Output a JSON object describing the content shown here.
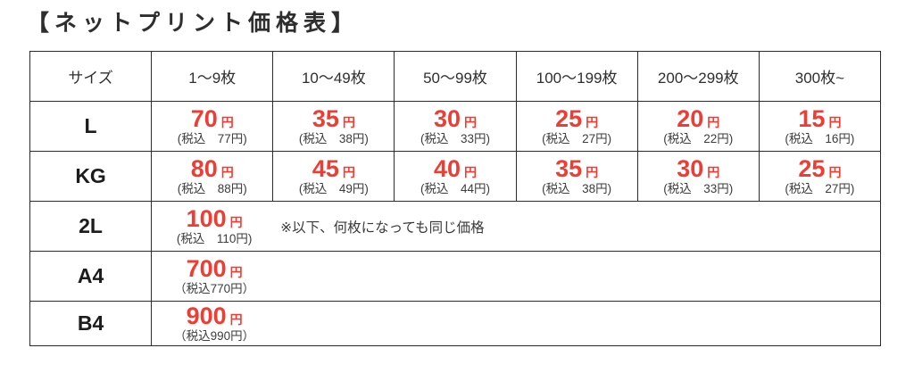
{
  "title": "【ネットプリント価格表】",
  "colors": {
    "accent_red": "#f03c32",
    "border": "#2b2b2b",
    "text_dark": "#2f2f2f"
  },
  "table": {
    "headers": [
      "サイズ",
      "1〜9枚",
      "10〜49枚",
      "50〜99枚",
      "100〜199枚",
      "200〜299枚",
      "300枚~"
    ],
    "rows": [
      {
        "size": "L",
        "prices": [
          {
            "amount": "70",
            "unit": "円",
            "tax": "(税込　77円)"
          },
          {
            "amount": "35",
            "unit": "円",
            "tax": "(税込　38円)"
          },
          {
            "amount": "30",
            "unit": "円",
            "tax": "(税込　33円)"
          },
          {
            "amount": "25",
            "unit": "円",
            "tax": "(税込　27円)"
          },
          {
            "amount": "20",
            "unit": "円",
            "tax": "(税込　22円)"
          },
          {
            "amount": "15",
            "unit": "円",
            "tax": "(税込　16円)"
          }
        ]
      },
      {
        "size": "KG",
        "prices": [
          {
            "amount": "80",
            "unit": "円",
            "tax": "(税込　88円)"
          },
          {
            "amount": "45",
            "unit": "円",
            "tax": "(税込　49円)"
          },
          {
            "amount": "40",
            "unit": "円",
            "tax": "(税込　44円)"
          },
          {
            "amount": "35",
            "unit": "円",
            "tax": "(税込　38円)"
          },
          {
            "amount": "30",
            "unit": "円",
            "tax": "(税込　33円)"
          },
          {
            "amount": "25",
            "unit": "円",
            "tax": "(税込　27円)"
          }
        ]
      },
      {
        "size": "2L",
        "prices": [
          {
            "amount": "100",
            "unit": "円",
            "tax": "(税込　110円)"
          }
        ],
        "note": "※以下、何枚になっても同じ価格"
      },
      {
        "size": "A4",
        "prices": [
          {
            "amount": "700",
            "unit": "円",
            "tax": "（税込770円）"
          }
        ]
      },
      {
        "size": "B4",
        "prices": [
          {
            "amount": "900",
            "unit": "円",
            "tax": "（税込990円）"
          }
        ]
      }
    ]
  }
}
